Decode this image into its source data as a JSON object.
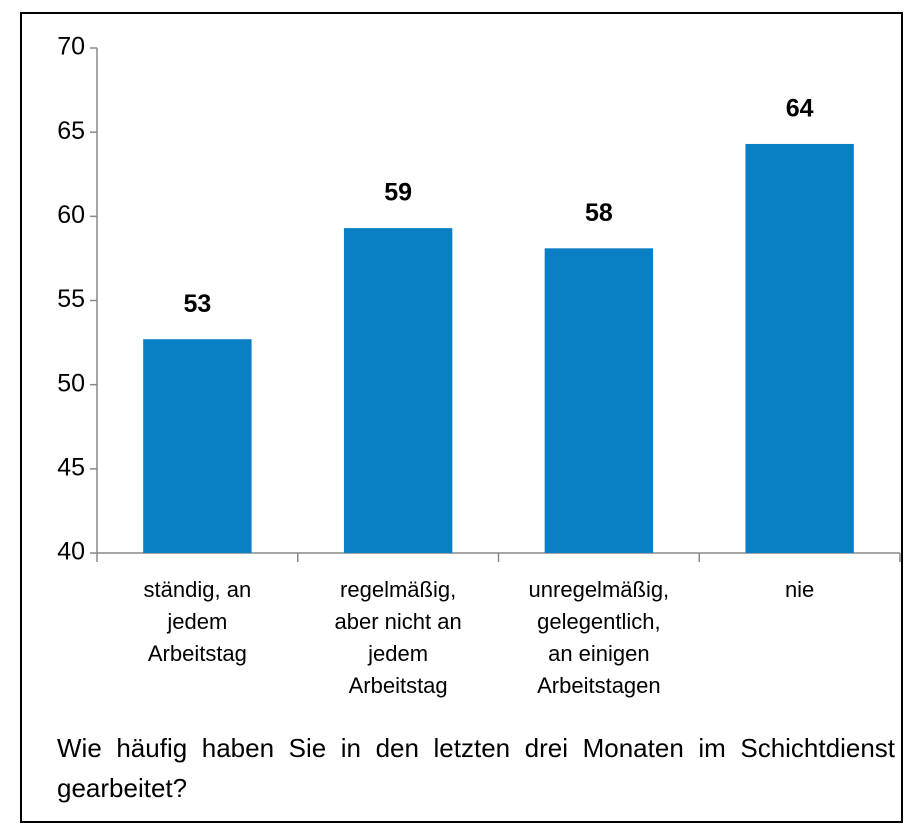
{
  "chart_data": {
    "type": "bar",
    "title": "Wie häufig haben Sie in den letzten drei Monaten im Schichtdienst gearbeitet?",
    "categories": [
      [
        "ständig, an",
        "jedem",
        "Arbeitstag"
      ],
      [
        "regelmäßig,",
        "aber nicht an",
        "jedem",
        "Arbeitstag"
      ],
      [
        "unregelmäßig,",
        "gelegentlich,",
        "an einigen",
        "Arbeitstagen"
      ],
      [
        "nie"
      ]
    ],
    "values": [
      52.7,
      59.3,
      58.1,
      64.3
    ],
    "value_labels": [
      "53",
      "59",
      "58",
      "64"
    ],
    "color": "#0a7fc4",
    "ylim": [
      40,
      70
    ],
    "yticks": [
      40,
      45,
      50,
      55,
      60,
      65,
      70
    ],
    "grid": false
  }
}
